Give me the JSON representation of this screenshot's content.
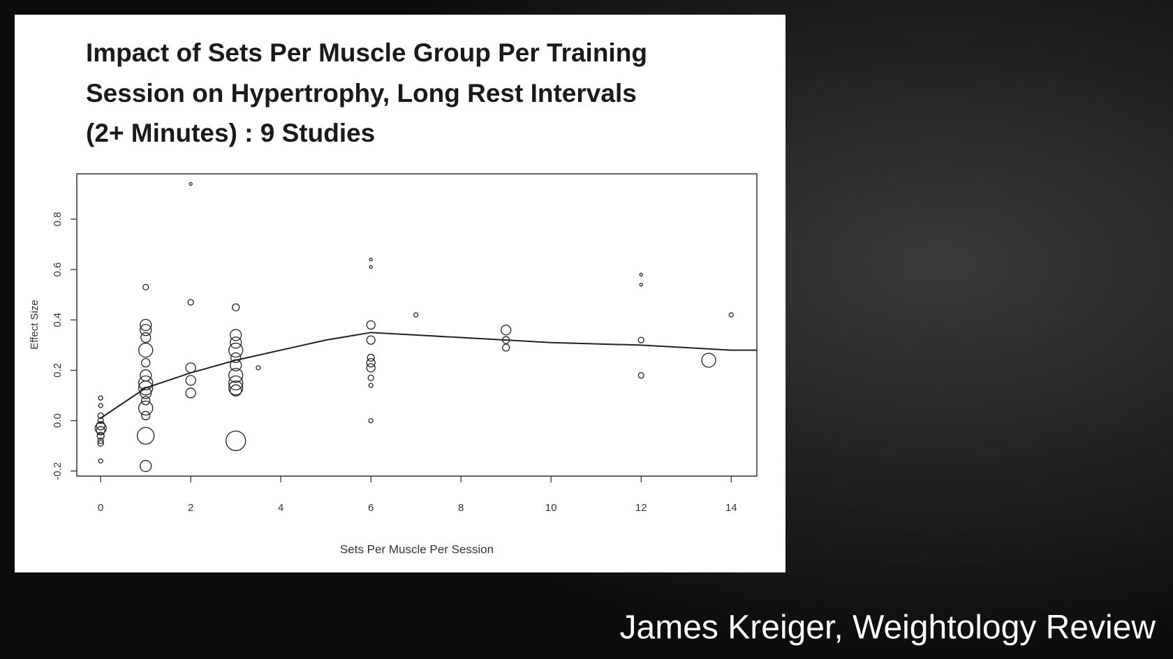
{
  "chart_data": {
    "type": "scatter",
    "title": [
      "Impact of Sets Per Muscle Group Per Training",
      "Session on Hypertrophy, Long Rest Intervals",
      "(2+ Minutes) : 9 Studies"
    ],
    "xlabel": "Sets Per Muscle Per Session",
    "ylabel": "Effect Size",
    "xlim": [
      -0.53,
      14.57
    ],
    "ylim": [
      -0.22,
      0.98
    ],
    "xticks": [
      0,
      2,
      4,
      6,
      8,
      10,
      12,
      14
    ],
    "yticks": [
      -0.2,
      {
        "value": 0,
        "label": "0.0"
      },
      0.2,
      0.4,
      0.6,
      0.8
    ],
    "color": "#222",
    "series": [
      {
        "type": "scatter",
        "x": [
          0,
          0,
          0,
          0,
          0,
          0,
          0,
          0,
          0,
          0,
          0,
          1,
          1,
          1,
          1,
          1,
          1,
          1,
          1,
          1,
          1,
          1,
          1,
          1,
          1,
          1,
          2,
          2,
          2,
          2,
          2,
          3,
          3,
          3,
          3,
          3,
          3,
          3,
          3,
          3,
          3,
          3,
          3.5,
          6,
          6,
          6,
          6,
          6,
          6,
          6,
          6,
          6,
          6,
          7,
          9,
          9,
          9,
          12,
          12,
          12,
          12,
          13.5,
          14
        ],
        "values": [
          0.09,
          0.06,
          0.02,
          0,
          -0.02,
          -0.03,
          -0.04,
          -0.06,
          -0.08,
          -0.09,
          -0.16,
          0.53,
          0.38,
          0.36,
          0.33,
          0.28,
          0.23,
          0.18,
          0.15,
          0.13,
          0.11,
          0.08,
          0.05,
          0.02,
          -0.06,
          -0.18,
          0.94,
          0.47,
          0.21,
          0.16,
          0.11,
          0.45,
          0.34,
          0.31,
          0.28,
          0.25,
          0.22,
          0.18,
          0.15,
          0.13,
          0.12,
          -0.08,
          0.21,
          0.64,
          0.61,
          0.38,
          0.32,
          0.25,
          0.23,
          0.21,
          0.17,
          0.14,
          0,
          0.42,
          0.36,
          0.32,
          0.29,
          0.58,
          0.54,
          0.32,
          0.18,
          0.24,
          0.42
        ],
        "sizes": [
          3,
          3,
          4,
          4,
          6,
          8,
          6,
          5,
          4,
          4,
          3,
          4,
          8,
          8,
          7,
          10,
          6,
          8,
          10,
          10,
          8,
          6,
          10,
          6,
          12,
          8,
          2,
          4,
          7,
          7,
          7,
          5,
          8,
          8,
          10,
          7,
          8,
          10,
          10,
          10,
          8,
          14,
          3,
          2,
          2,
          6,
          6,
          5,
          6,
          6,
          4,
          3,
          3,
          3,
          7,
          5,
          5,
          2,
          2,
          4,
          4,
          10,
          3
        ]
      },
      {
        "type": "line",
        "x": [
          0,
          1,
          2,
          3,
          4,
          5,
          6,
          7,
          8,
          9,
          10,
          12,
          14,
          14.57
        ],
        "values": [
          0.01,
          0.13,
          0.19,
          0.24,
          0.28,
          0.32,
          0.35,
          0.34,
          0.33,
          0.32,
          0.31,
          0.3,
          0.28,
          0.28
        ]
      }
    ]
  },
  "credit": "James Kreiger, Weightology Review"
}
